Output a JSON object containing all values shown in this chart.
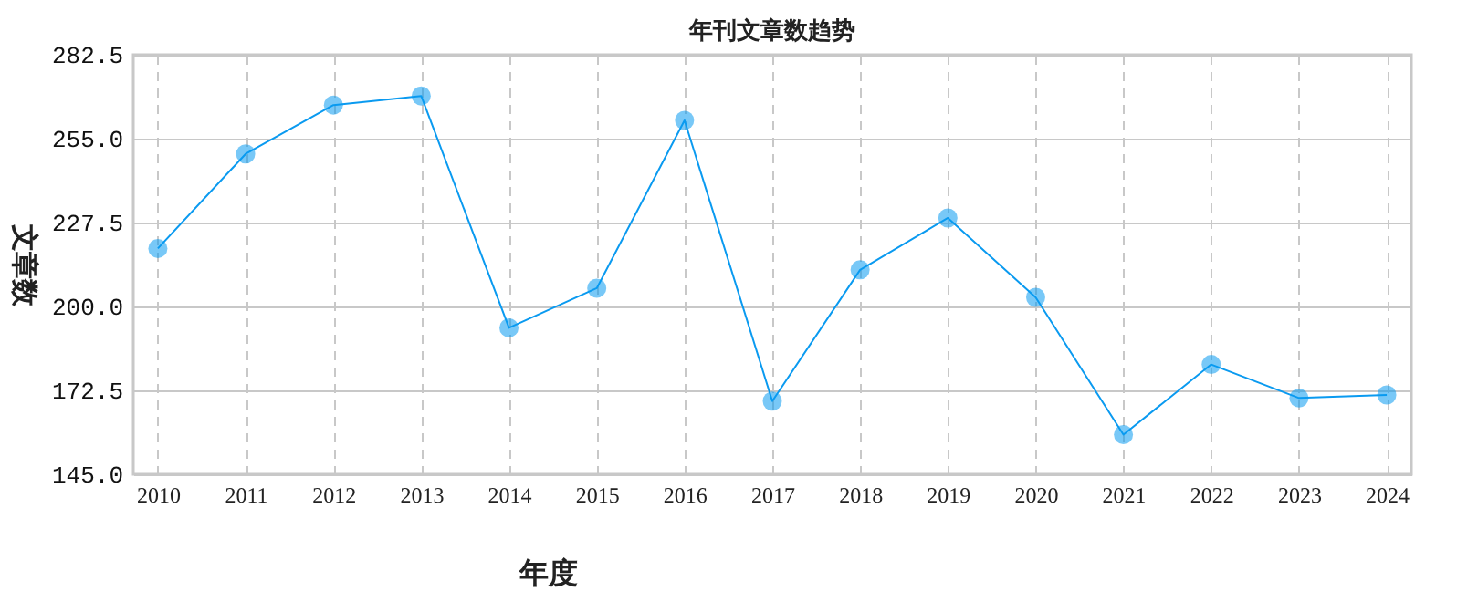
{
  "chart_data": {
    "type": "line",
    "title": "年刊文章数趋势",
    "xlabel": "年度",
    "ylabel": "文章数",
    "categories": [
      "2010",
      "2011",
      "2012",
      "2013",
      "2014",
      "2015",
      "2016",
      "2017",
      "2018",
      "2019",
      "2020",
      "2021",
      "2022",
      "2023",
      "2024"
    ],
    "series": [
      {
        "color": "#0a9af0",
        "values": [
          219,
          250,
          266,
          269,
          193,
          206,
          261,
          169,
          212,
          229,
          203,
          158,
          181,
          170,
          171
        ]
      }
    ],
    "ylim": [
      145,
      282.5
    ],
    "yticks": [
      {
        "value": 145,
        "label": "145.0"
      },
      {
        "value": 172.5,
        "label": "172.5"
      },
      {
        "value": 200,
        "label": "200.0"
      },
      {
        "value": 227.5,
        "label": "227.5"
      },
      {
        "value": 255,
        "label": "255.0"
      },
      {
        "value": 282.5,
        "label": "282.5"
      }
    ],
    "grid": true,
    "marker": "circle",
    "line_style": "solid"
  }
}
